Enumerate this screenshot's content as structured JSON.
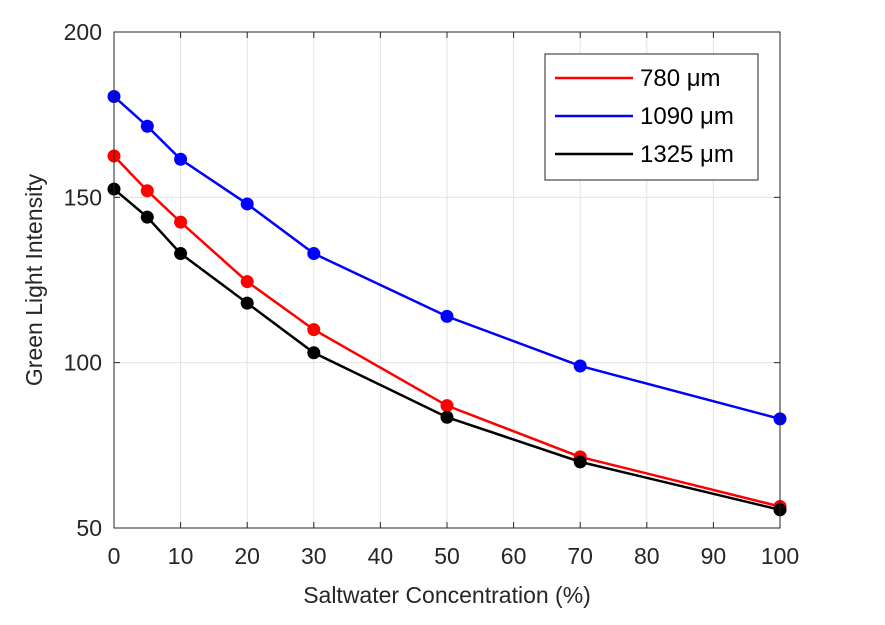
{
  "chart_data": {
    "type": "line",
    "title": "",
    "xlabel": "Saltwater Concentration (%)",
    "ylabel": "Green Light Intensity",
    "xlim": [
      0,
      100
    ],
    "ylim": [
      50,
      200
    ],
    "xticks": [
      0,
      10,
      20,
      30,
      40,
      50,
      60,
      70,
      80,
      90,
      100
    ],
    "yticks": [
      50,
      100,
      150,
      200
    ],
    "grid": true,
    "legend_position": "top-right",
    "x": [
      0,
      5,
      10,
      20,
      30,
      50,
      70,
      100
    ],
    "series": [
      {
        "name": "780 μm",
        "color": "#ff0000",
        "values": [
          162.5,
          152,
          142.5,
          124.5,
          110,
          87,
          71.5,
          56.5
        ]
      },
      {
        "name": "1090 μm",
        "color": "#0000ff",
        "values": [
          180.5,
          171.5,
          161.5,
          148,
          133,
          114,
          99,
          83
        ]
      },
      {
        "name": "1325 μm",
        "color": "#000000",
        "values": [
          152.5,
          144,
          133,
          118,
          103,
          83.5,
          70,
          55.5
        ]
      }
    ]
  }
}
